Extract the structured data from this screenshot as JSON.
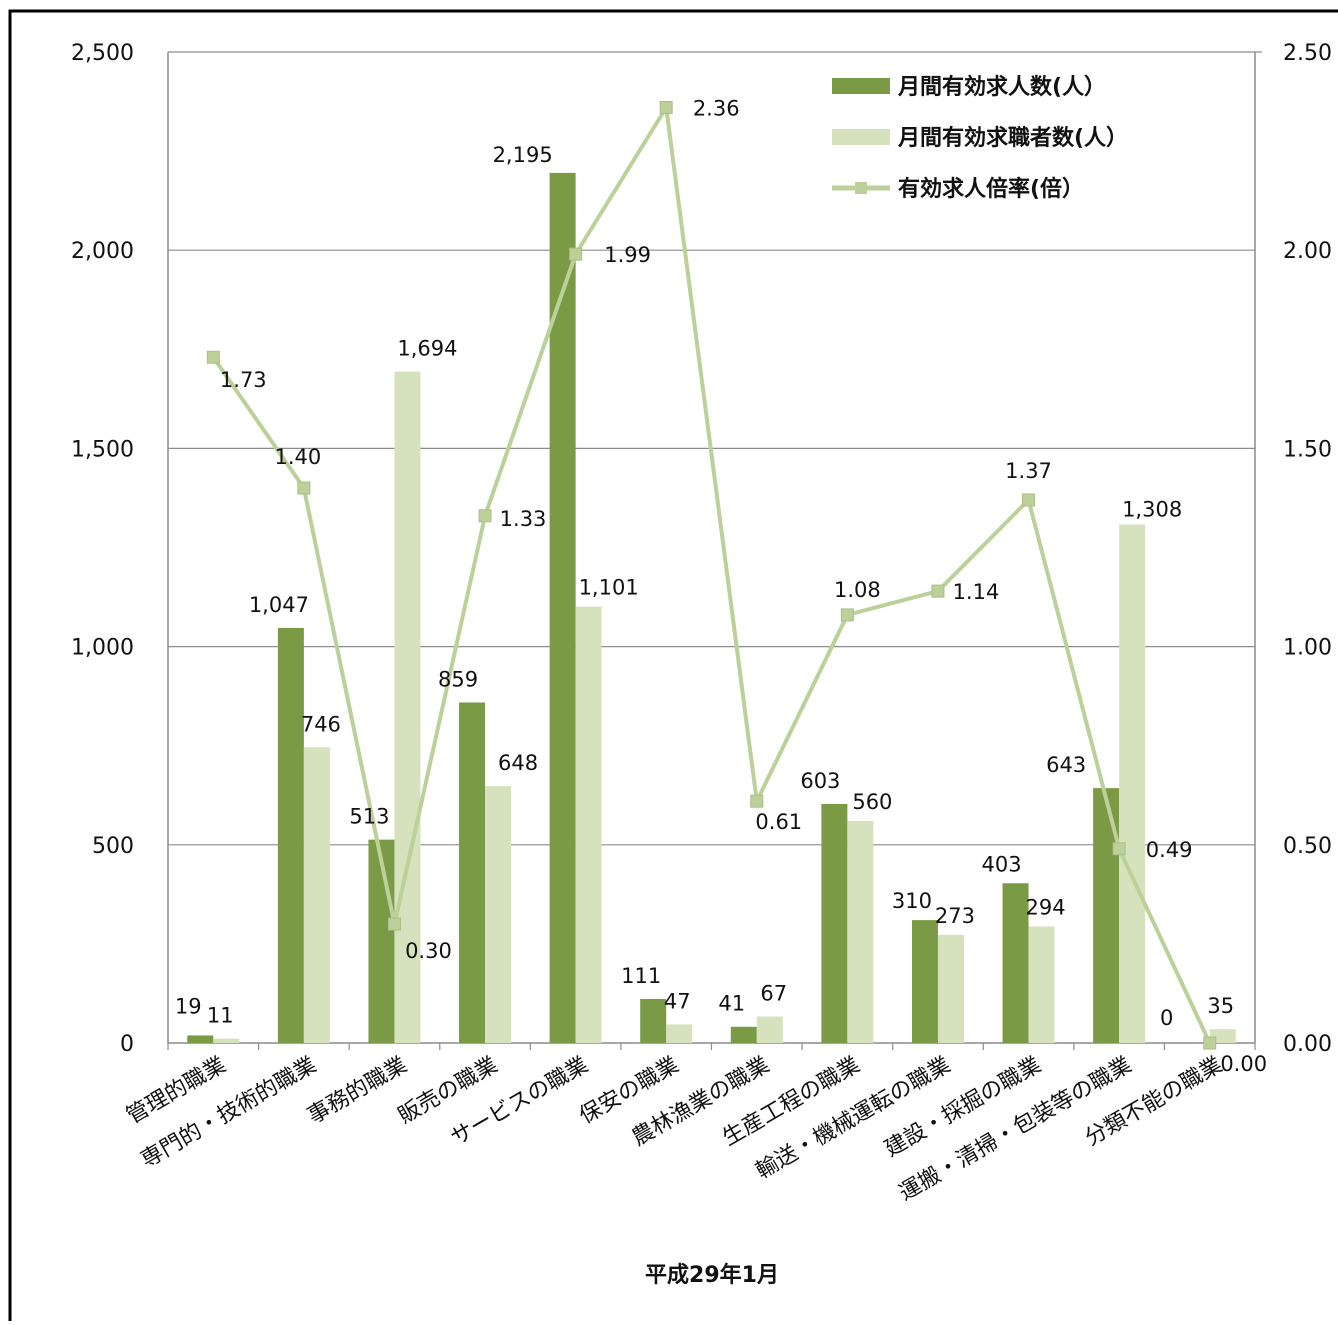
{
  "chart_data": {
    "type": "bar",
    "categories": [
      "管理的職業",
      "専門的・技術的職業",
      "事務的職業",
      "販売の職業",
      "サービスの職業",
      "保安の職業",
      "農林漁業の職業",
      "生産工程の職業",
      "輸送・機械運転の職業",
      "建設・採掘の職業",
      "運搬・清掃・包装等の職業",
      "分類不能の職業"
    ],
    "series": [
      {
        "name": "月間有効求人数(人)",
        "kind": "bar",
        "axis": "left",
        "color": "#7a9a46",
        "values": [
          19,
          1047,
          513,
          859,
          2195,
          111,
          41,
          603,
          310,
          403,
          643,
          0
        ],
        "labels": [
          "19",
          "1,047",
          "513",
          "859",
          "2,195",
          "111",
          "41",
          "603",
          "310",
          "403",
          "643",
          "0"
        ]
      },
      {
        "name": "月間有効求職者数(人)",
        "kind": "bar",
        "axis": "left",
        "color": "#d6e2bd",
        "values": [
          11,
          746,
          1694,
          648,
          1101,
          47,
          67,
          560,
          273,
          294,
          1308,
          35
        ],
        "labels": [
          "11",
          "746",
          "1,694",
          "648",
          "1,101",
          "47",
          "67",
          "560",
          "273",
          "294",
          "1,308",
          "35"
        ]
      },
      {
        "name": "有効求人倍率(倍）",
        "kind": "line",
        "axis": "right",
        "color": "#bcd09a",
        "values": [
          1.73,
          1.4,
          0.3,
          1.33,
          1.99,
          2.36,
          0.61,
          1.08,
          1.14,
          1.37,
          0.49,
          0.0
        ],
        "labels": [
          "1.73",
          "1.40",
          "0.30",
          "1.33",
          "1.99",
          "2.36",
          "0.61",
          "1.08",
          "1.14",
          "1.37",
          "0.49",
          "0.00"
        ]
      }
    ],
    "y_left": {
      "ylim": [
        0,
        2500
      ],
      "ticks": [
        0,
        500,
        1000,
        1500,
        2000,
        2500
      ],
      "tick_labels": [
        "0",
        "500",
        "1,000",
        "1,500",
        "2,000",
        "2,500"
      ]
    },
    "y_right": {
      "ylim": [
        0,
        2.5
      ],
      "ticks": [
        0,
        0.5,
        1.0,
        1.5,
        2.0,
        2.5
      ],
      "tick_labels": [
        "0.00",
        "0.50",
        "1.00",
        "1.50",
        "2.00",
        "2.50"
      ]
    },
    "xlabel": "平成29年1月",
    "legend_labels": [
      "月間有効求人数(人）",
      "月間有効求職者数(人）",
      "有効求人倍率(倍）"
    ],
    "legend_position": "top-right",
    "grid": true
  }
}
